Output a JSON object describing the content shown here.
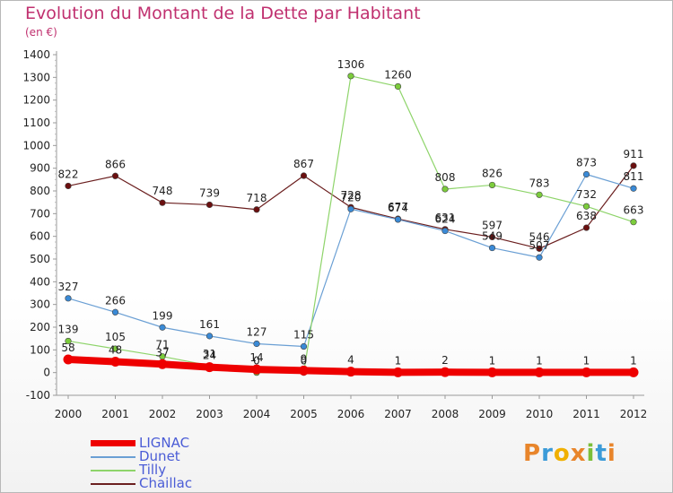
{
  "title": "Evolution du Montant de la Dette par Habitant",
  "subtitle": "(en €)",
  "logo": {
    "text": "Proxiti",
    "letters": [
      {
        "ch": "P",
        "color": "#e8852b"
      },
      {
        "ch": "r",
        "color": "#3b9bd8"
      },
      {
        "ch": "o",
        "color": "#f0b000"
      },
      {
        "ch": "x",
        "color": "#e8852b"
      },
      {
        "ch": "i",
        "color": "#7bbf3a"
      },
      {
        "ch": "t",
        "color": "#3b9bd8"
      },
      {
        "ch": "i",
        "color": "#e8852b"
      }
    ]
  },
  "chart_data": {
    "type": "line",
    "x": [
      "2000",
      "2001",
      "2002",
      "2003",
      "2004",
      "2005",
      "2006",
      "2007",
      "2008",
      "2009",
      "2010",
      "2011",
      "2012"
    ],
    "ylim": [
      -100,
      1400
    ],
    "yticks": [
      "-100",
      "0",
      "100",
      "200",
      "300",
      "400",
      "500",
      "600",
      "700",
      "800",
      "900",
      "1000",
      "1100",
      "1200",
      "1300",
      "1400"
    ],
    "grid": false,
    "legend": "bottom-left",
    "series": [
      {
        "name": "LIGNAC",
        "color": "#ee0000",
        "width": 8,
        "marker": "#ee0000",
        "values": [
          58,
          48,
          37,
          24,
          14,
          9,
          4,
          1,
          2,
          1,
          1,
          1,
          1
        ]
      },
      {
        "name": "Dunet",
        "color": "#6a9fd4",
        "width": 1.2,
        "marker": "#3a8ad6",
        "values": [
          327,
          266,
          199,
          161,
          127,
          115,
          720,
          674,
          624,
          549,
          507,
          873,
          811
        ]
      },
      {
        "name": "Tilly",
        "color": "#8ed46a",
        "width": 1.2,
        "marker": "#7ccc3c",
        "values": [
          139,
          105,
          71,
          31,
          0,
          0,
          1306,
          1260,
          808,
          826,
          783,
          732,
          663
        ]
      },
      {
        "name": "Chaillac",
        "color": "#6b1f1f",
        "width": 1.2,
        "marker": "#6b0f0f",
        "values": [
          822,
          866,
          748,
          739,
          718,
          867,
          728,
          677,
          631,
          597,
          546,
          638,
          911
        ]
      }
    ],
    "data_labels": [
      {
        "series": 3,
        "i": 0,
        "text": "822"
      },
      {
        "series": 3,
        "i": 1,
        "text": "866"
      },
      {
        "series": 3,
        "i": 2,
        "text": "748"
      },
      {
        "series": 3,
        "i": 3,
        "text": "739"
      },
      {
        "series": 3,
        "i": 4,
        "text": "718"
      },
      {
        "series": 3,
        "i": 5,
        "text": "867"
      },
      {
        "series": 3,
        "i": 6,
        "text": "728"
      },
      {
        "series": 3,
        "i": 7,
        "text": "677"
      },
      {
        "series": 3,
        "i": 8,
        "text": "631"
      },
      {
        "series": 3,
        "i": 9,
        "text": "597"
      },
      {
        "series": 3,
        "i": 10,
        "text": "546"
      },
      {
        "series": 3,
        "i": 11,
        "text": "638"
      },
      {
        "series": 3,
        "i": 12,
        "text": "911"
      },
      {
        "series": 1,
        "i": 0,
        "text": "327"
      },
      {
        "series": 1,
        "i": 1,
        "text": "266"
      },
      {
        "series": 1,
        "i": 2,
        "text": "199"
      },
      {
        "series": 1,
        "i": 3,
        "text": "161"
      },
      {
        "series": 1,
        "i": 4,
        "text": "127"
      },
      {
        "series": 1,
        "i": 5,
        "text": "115"
      },
      {
        "series": 1,
        "i": 6,
        "text": "720"
      },
      {
        "series": 1,
        "i": 7,
        "text": "674"
      },
      {
        "series": 1,
        "i": 8,
        "text": "624"
      },
      {
        "series": 1,
        "i": 9,
        "text": "549"
      },
      {
        "series": 1,
        "i": 10,
        "text": "507"
      },
      {
        "series": 1,
        "i": 11,
        "text": "873"
      },
      {
        "series": 1,
        "i": 12,
        "text": "811"
      },
      {
        "series": 2,
        "i": 0,
        "text": "139"
      },
      {
        "series": 2,
        "i": 1,
        "text": "105"
      },
      {
        "series": 2,
        "i": 2,
        "text": "71"
      },
      {
        "series": 2,
        "i": 3,
        "text": "31"
      },
      {
        "series": 2,
        "i": 4,
        "text": "0"
      },
      {
        "series": 2,
        "i": 5,
        "text": "0"
      },
      {
        "series": 2,
        "i": 6,
        "text": "1306"
      },
      {
        "series": 2,
        "i": 7,
        "text": "1260"
      },
      {
        "series": 2,
        "i": 8,
        "text": "808"
      },
      {
        "series": 2,
        "i": 9,
        "text": "826"
      },
      {
        "series": 2,
        "i": 10,
        "text": "783"
      },
      {
        "series": 2,
        "i": 11,
        "text": "732"
      },
      {
        "series": 2,
        "i": 12,
        "text": "663"
      },
      {
        "series": 0,
        "i": 0,
        "text": "58"
      },
      {
        "series": 0,
        "i": 1,
        "text": "48"
      },
      {
        "series": 0,
        "i": 2,
        "text": "37"
      },
      {
        "series": 0,
        "i": 3,
        "text": "24"
      },
      {
        "series": 0,
        "i": 4,
        "text": "14"
      },
      {
        "series": 0,
        "i": 5,
        "text": "9"
      },
      {
        "series": 0,
        "i": 6,
        "text": "4"
      },
      {
        "series": 0,
        "i": 7,
        "text": "1"
      },
      {
        "series": 0,
        "i": 8,
        "text": "2"
      },
      {
        "series": 0,
        "i": 9,
        "text": "1"
      },
      {
        "series": 0,
        "i": 10,
        "text": "1"
      },
      {
        "series": 0,
        "i": 11,
        "text": "1"
      },
      {
        "series": 0,
        "i": 12,
        "text": "1"
      }
    ]
  }
}
